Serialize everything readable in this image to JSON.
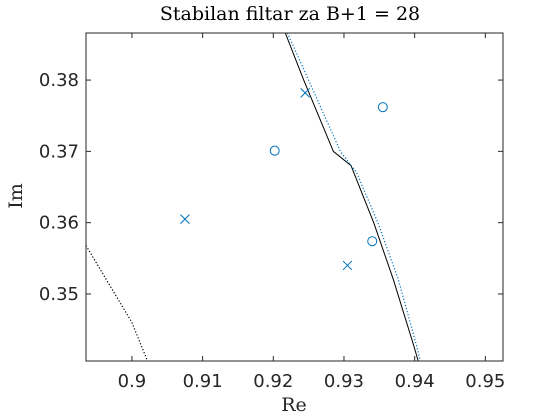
{
  "chart_data": {
    "type": "scatter",
    "title": "Stabilan filtar za B+1 = 28",
    "xlabel": "Re",
    "ylabel": "Im",
    "xlim": [
      0.8935,
      0.9525
    ],
    "ylim": [
      0.3406,
      0.3866
    ],
    "xticks": [
      0.9,
      0.91,
      0.92,
      0.93,
      0.94,
      0.95
    ],
    "yticks": [
      0.35,
      0.36,
      0.37,
      0.38
    ],
    "xtick_labels": [
      "0.9",
      "0.91",
      "0.92",
      "0.93",
      "0.94",
      "0.95"
    ],
    "ytick_labels": [
      "0.35",
      "0.36",
      "0.37",
      "0.38"
    ],
    "grid": false,
    "color": "#0072BD",
    "series": [
      {
        "marker": "x",
        "points": [
          [
            0.9075,
            0.3605
          ],
          [
            0.9245,
            0.3782
          ],
          [
            0.9305,
            0.354
          ]
        ]
      },
      {
        "marker": "o",
        "points": [
          [
            0.9202,
            0.3701
          ],
          [
            0.9355,
            0.3762
          ],
          [
            0.934,
            0.3574
          ]
        ]
      }
    ],
    "lines": [
      {
        "style": "solid",
        "color": "#000000",
        "points": [
          [
            0.9217,
            0.3866
          ],
          [
            0.9243,
            0.38
          ],
          [
            0.9285,
            0.37
          ],
          [
            0.931,
            0.368
          ],
          [
            0.9342,
            0.36
          ],
          [
            0.937,
            0.352
          ],
          [
            0.9398,
            0.343
          ],
          [
            0.9405,
            0.3406
          ]
        ]
      },
      {
        "style": "dotted",
        "color": "#0072BD",
        "points": [
          [
            0.922,
            0.3866
          ],
          [
            0.925,
            0.38
          ],
          [
            0.9295,
            0.37
          ],
          [
            0.9318,
            0.367
          ],
          [
            0.9348,
            0.36
          ],
          [
            0.9377,
            0.352
          ],
          [
            0.9402,
            0.343
          ],
          [
            0.9408,
            0.3406
          ]
        ]
      },
      {
        "style": "dotted",
        "color": "#000000",
        "points": [
          [
            0.8935,
            0.3568
          ],
          [
            0.9,
            0.346
          ],
          [
            0.9022,
            0.3406
          ]
        ]
      }
    ]
  }
}
